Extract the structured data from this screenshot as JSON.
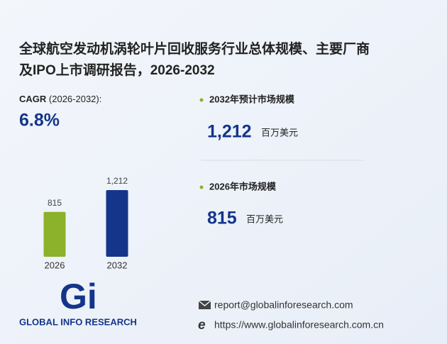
{
  "title_lines": [
    "全球航空发动机涡轮叶片回收服务行业总体规模、主要厂商",
    "及IPO上市调研报告，2026-2032"
  ],
  "cagr": {
    "label": "CAGR",
    "period": "(2026-2032):",
    "value": "6.8%"
  },
  "stats": [
    {
      "label": "2032年预计市场规模",
      "value": "1,212",
      "unit": "百万美元"
    },
    {
      "label": "2026年市场规模",
      "value": "815",
      "unit": "百万美元"
    }
  ],
  "chart_data": {
    "type": "bar",
    "categories": [
      "2026",
      "2032"
    ],
    "values": [
      815,
      1212
    ],
    "value_labels": [
      "815",
      "1,212"
    ],
    "colors": [
      "#8cb12a",
      "#14358a"
    ]
  },
  "logo": {
    "mark": "Gi",
    "name": "GLOBAL INFO RESEARCH"
  },
  "contact": {
    "email": "report@globalinforesearch.com",
    "website": "https://www.globalinforesearch.com.cn"
  }
}
